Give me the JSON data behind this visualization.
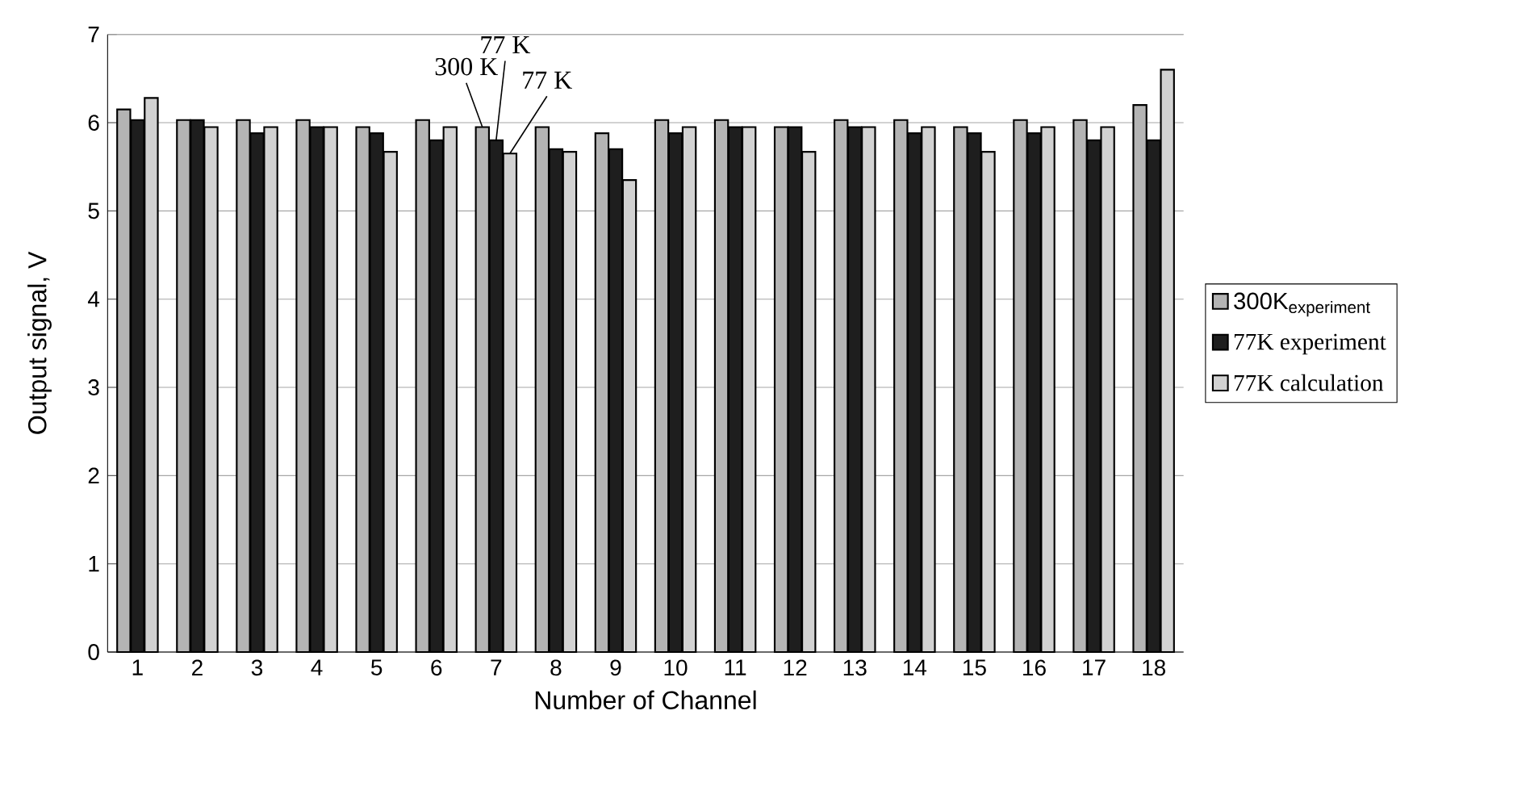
{
  "chart_data": {
    "type": "bar",
    "xlabel": "Number of Channel",
    "ylabel": "Output signal, V",
    "categories": [
      "1",
      "2",
      "3",
      "4",
      "5",
      "6",
      "7",
      "8",
      "9",
      "10",
      "11",
      "12",
      "13",
      "14",
      "15",
      "16",
      "17",
      "18"
    ],
    "series": [
      {
        "name": "\\mathrm{300K}_{\\mathrm{experiment}}",
        "color": "#b4b4b4",
        "values": [
          6.15,
          6.03,
          6.03,
          6.03,
          5.95,
          6.03,
          5.95,
          5.95,
          5.88,
          6.03,
          6.03,
          5.95,
          6.03,
          6.03,
          5.95,
          6.03,
          6.03,
          6.2
        ]
      },
      {
        "name": "77K experiment",
        "color": "#1e1e1e",
        "values": [
          6.03,
          6.03,
          5.88,
          5.95,
          5.88,
          5.8,
          5.8,
          5.7,
          5.7,
          5.88,
          5.95,
          5.95,
          5.95,
          5.88,
          5.88,
          5.88,
          5.8,
          5.8
        ]
      },
      {
        "name": "77K calculation",
        "color": "#d2d2d2",
        "values": [
          6.28,
          5.95,
          5.95,
          5.95,
          5.67,
          5.95,
          5.65,
          5.67,
          5.35,
          5.95,
          5.95,
          5.67,
          5.95,
          5.95,
          5.67,
          5.95,
          5.95,
          6.6
        ]
      }
    ],
    "annotations": [
      {
        "text": "300 K",
        "x": "7",
        "y": 5.95
      },
      {
        "text": "77 K",
        "x": "7",
        "y": 5.8
      },
      {
        "text": "77 K",
        "x": "7",
        "y": 5.65
      }
    ],
    "ylim": [
      0,
      7
    ],
    "yticks": [
      0,
      1,
      2,
      3,
      4,
      5,
      6,
      7
    ],
    "grid": "y",
    "legend": "right"
  }
}
